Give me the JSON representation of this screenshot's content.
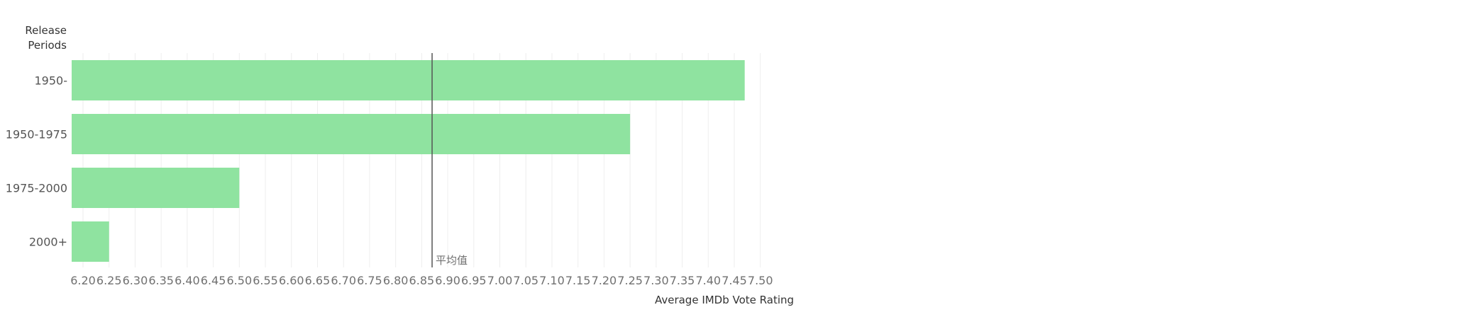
{
  "chart_data": {
    "type": "bar",
    "orientation": "horizontal",
    "categories": [
      "1950-",
      "1950-1975",
      "1975-2000",
      "2000+"
    ],
    "values": [
      7.47,
      7.25,
      6.5,
      6.25
    ],
    "xlabel": "Average IMDb Vote Rating",
    "ylabel": "Release\nPeriods",
    "ylabel_lines": [
      "Release",
      "Periods"
    ],
    "xlim": [
      6.19,
      7.55
    ],
    "xticks": [
      6.2,
      6.25,
      6.3,
      6.35,
      6.4,
      6.45,
      6.5,
      6.55,
      6.6,
      6.65,
      6.7,
      6.75,
      6.8,
      6.85,
      6.9,
      6.95,
      7.0,
      7.05,
      7.1,
      7.15,
      7.2,
      7.25,
      7.3,
      7.35,
      7.4,
      7.45,
      7.5
    ],
    "xtick_labels": [
      "6.20",
      "6.25",
      "6.30",
      "6.35",
      "6.40",
      "6.45",
      "6.50",
      "6.55",
      "6.60",
      "6.65",
      "6.70",
      "6.75",
      "6.80",
      "6.85",
      "6.90",
      "6.95",
      "7.00",
      "7.05",
      "7.10",
      "7.15",
      "7.20",
      "7.25",
      "7.30",
      "7.35",
      "7.40",
      "7.45",
      "7.50"
    ],
    "reference_line": {
      "label": "平均值",
      "value": 6.87
    },
    "grid": true,
    "colors": {
      "bar": "#8fe3a0",
      "reference_line": "#555555",
      "grid": "#eeeeee"
    }
  }
}
